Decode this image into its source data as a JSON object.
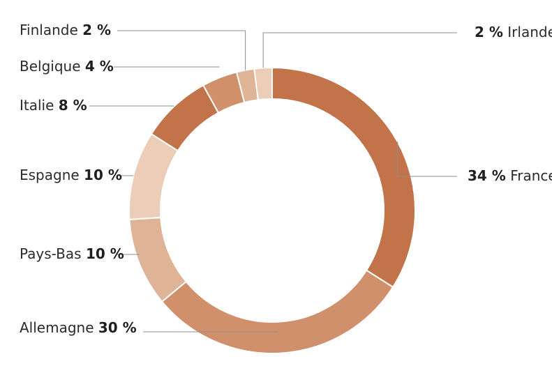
{
  "chart_data": {
    "type": "pie",
    "style": "donut",
    "title": "",
    "unit": "%",
    "slices": [
      {
        "name": "France",
        "value": 34,
        "value_label": "34 %",
        "color": "#C37349"
      },
      {
        "name": "Allemagne",
        "value": 30,
        "value_label": "30 %",
        "color": "#D1906C"
      },
      {
        "name": "Pays-Bas",
        "value": 10,
        "value_label": "10 %",
        "color": "#DFB395"
      },
      {
        "name": "Espagne",
        "value": 10,
        "value_label": "10 %",
        "color": "#EBCDB8"
      },
      {
        "name": "Italie",
        "value": 8,
        "value_label": "8 %",
        "color": "#C37349"
      },
      {
        "name": "Belgique",
        "value": 4,
        "value_label": "4 %",
        "color": "#D1906C"
      },
      {
        "name": "Finlande",
        "value": 2,
        "value_label": "2 %",
        "color": "#DFB395"
      },
      {
        "name": "Irlande",
        "value": 2,
        "value_label": "2 %",
        "color": "#EBCDB8"
      }
    ]
  }
}
